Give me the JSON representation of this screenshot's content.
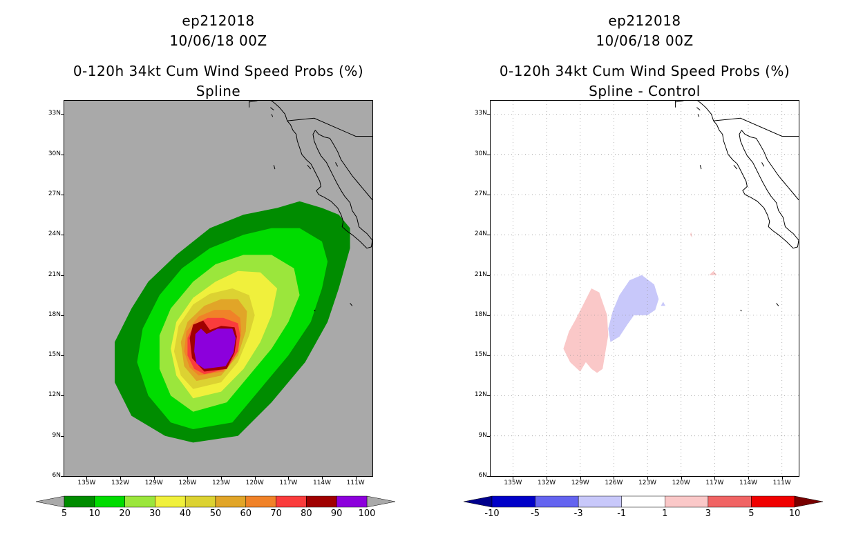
{
  "left": {
    "line1": "ep212018",
    "line2": "10/06/18 00Z",
    "line3": "0-120h 34kt Cum Wind Speed Probs (%)",
    "line4": "Spline",
    "background": "#a9a9a9",
    "colorbar": {
      "colors": [
        "#008c00",
        "#00dc00",
        "#9be63c",
        "#f0f03c",
        "#dcd232",
        "#e1a528",
        "#f08228",
        "#fa3c3c",
        "#a00000",
        "#8c00dc"
      ],
      "labels": [
        "5",
        "10",
        "20",
        "30",
        "40",
        "50",
        "60",
        "70",
        "80",
        "90",
        "100"
      ]
    }
  },
  "right": {
    "line1": "ep212018",
    "line2": "10/06/18 00Z",
    "line3": "0-120h 34kt Cum Wind Speed Probs (%)",
    "line4": "Spline - Control",
    "background": "#ffffff",
    "colorbar": {
      "colors": [
        "#0000c8",
        "#6464f0",
        "#c8c8fa",
        "#ffffff",
        "#fac8c8",
        "#f06464",
        "#f00000"
      ],
      "labels": [
        "-10",
        "-5",
        "-3",
        "-1",
        "1",
        "3",
        "5",
        "10"
      ],
      "low_end_color": "#00008c",
      "high_end_color": "#780000"
    }
  },
  "axes": {
    "lat_labels": [
      "33N",
      "30N",
      "27N",
      "24N",
      "21N",
      "18N",
      "15N",
      "12N",
      "9N",
      "6N"
    ],
    "lon_labels": [
      "135W",
      "132W",
      "129W",
      "126W",
      "123W",
      "120W",
      "117W",
      "114W",
      "111W"
    ]
  },
  "map_data": {
    "domain": {
      "lon_min": -137,
      "lon_max": -109.5,
      "lat_min": 6,
      "lat_max": 34
    },
    "prob_contours": [
      {
        "level": 5,
        "color": "#008c00",
        "points": [
          [
            -125.5,
            8.5
          ],
          [
            -121.5,
            9
          ],
          [
            -118.5,
            11.5
          ],
          [
            -115.5,
            14.5
          ],
          [
            -113.5,
            17.5
          ],
          [
            -112.5,
            20
          ],
          [
            -111.5,
            23
          ],
          [
            -111.5,
            24.5
          ],
          [
            -112.5,
            25.5
          ],
          [
            -114,
            26
          ],
          [
            -116,
            26.5
          ],
          [
            -118,
            26
          ],
          [
            -121,
            25.5
          ],
          [
            -124,
            24.5
          ],
          [
            -127,
            22.5
          ],
          [
            -129.5,
            20.5
          ],
          [
            -131,
            18.5
          ],
          [
            -132.5,
            16
          ],
          [
            -132.5,
            13
          ],
          [
            -131,
            10.5
          ],
          [
            -128,
            9
          ]
        ]
      },
      {
        "level": 10,
        "color": "#00dc00",
        "points": [
          [
            -125.5,
            9.5
          ],
          [
            -122,
            10
          ],
          [
            -119.5,
            12.5
          ],
          [
            -117,
            15
          ],
          [
            -115,
            17.5
          ],
          [
            -114,
            20
          ],
          [
            -113.5,
            22
          ],
          [
            -114,
            23.5
          ],
          [
            -116,
            24.5
          ],
          [
            -118.5,
            24.5
          ],
          [
            -121,
            24
          ],
          [
            -124,
            23
          ],
          [
            -126.5,
            21.5
          ],
          [
            -128.5,
            19.5
          ],
          [
            -130,
            17
          ],
          [
            -130.5,
            14.5
          ],
          [
            -129.5,
            12
          ],
          [
            -127.5,
            10
          ]
        ]
      },
      {
        "level": 20,
        "color": "#9be63c",
        "points": [
          [
            -125.5,
            10.8
          ],
          [
            -122.5,
            11.5
          ],
          [
            -120.5,
            13.5
          ],
          [
            -118.5,
            15.5
          ],
          [
            -117,
            17.5
          ],
          [
            -116,
            19.5
          ],
          [
            -116.5,
            21.5
          ],
          [
            -118.5,
            22.5
          ],
          [
            -121,
            22.5
          ],
          [
            -123.5,
            21.8
          ],
          [
            -125.5,
            20.5
          ],
          [
            -127.5,
            18.5
          ],
          [
            -128.5,
            16.5
          ],
          [
            -128.5,
            14
          ],
          [
            -127.5,
            12
          ]
        ]
      },
      {
        "level": 30,
        "color": "#f0f03c",
        "points": [
          [
            -125.5,
            11.8
          ],
          [
            -123,
            12.3
          ],
          [
            -121,
            14
          ],
          [
            -119.5,
            16
          ],
          [
            -118.5,
            18
          ],
          [
            -118,
            20
          ],
          [
            -119.5,
            21.2
          ],
          [
            -121.5,
            21.3
          ],
          [
            -123.5,
            20.5
          ],
          [
            -125.5,
            19.3
          ],
          [
            -127,
            17.5
          ],
          [
            -127.5,
            15.5
          ],
          [
            -127,
            13.5
          ]
        ]
      },
      {
        "level": 40,
        "color": "#dcd232",
        "points": [
          [
            -125.5,
            12.5
          ],
          [
            -123,
            13
          ],
          [
            -121.5,
            14.5
          ],
          [
            -120.5,
            16.5
          ],
          [
            -120,
            18
          ],
          [
            -120.5,
            19.5
          ],
          [
            -122,
            20
          ],
          [
            -124,
            19.6
          ],
          [
            -125.5,
            18.8
          ],
          [
            -126.8,
            17.2
          ],
          [
            -127.2,
            15.3
          ],
          [
            -126.6,
            13.5
          ]
        ]
      },
      {
        "level": 50,
        "color": "#e1a528",
        "points": [
          [
            -125.2,
            13.1
          ],
          [
            -123,
            13.5
          ],
          [
            -121.5,
            15
          ],
          [
            -120.8,
            16.8
          ],
          [
            -120.7,
            18.3
          ],
          [
            -121.5,
            19.2
          ],
          [
            -123,
            19.2
          ],
          [
            -124.5,
            18.7
          ],
          [
            -126,
            17.5
          ],
          [
            -126.6,
            16
          ],
          [
            -126.3,
            14.2
          ]
        ]
      },
      {
        "level": 60,
        "color": "#f08228",
        "points": [
          [
            -125,
            13.5
          ],
          [
            -122.8,
            13.8
          ],
          [
            -121.5,
            15.3
          ],
          [
            -121.2,
            16.8
          ],
          [
            -121.3,
            17.8
          ],
          [
            -122.2,
            18.4
          ],
          [
            -123.6,
            18.4
          ],
          [
            -125,
            17.9
          ],
          [
            -126.1,
            16.8
          ],
          [
            -126.3,
            15.3
          ],
          [
            -125.8,
            14.1
          ]
        ]
      },
      {
        "level": 70,
        "color": "#fa3c3c",
        "points": [
          [
            -124.5,
            13.6
          ],
          [
            -122.5,
            14
          ],
          [
            -121.5,
            15.3
          ],
          [
            -121.3,
            16.5
          ],
          [
            -121.5,
            17.4
          ],
          [
            -122.8,
            17.8
          ],
          [
            -124.2,
            17.8
          ],
          [
            -125.4,
            17.3
          ],
          [
            -126,
            16.3
          ],
          [
            -126,
            15
          ],
          [
            -125.4,
            14
          ]
        ]
      },
      {
        "level": 80,
        "color": "#a00000",
        "points": [
          [
            -124.5,
            13.8
          ],
          [
            -122.5,
            14
          ],
          [
            -121.8,
            15.2
          ],
          [
            -121.6,
            16.4
          ],
          [
            -121.8,
            17.1
          ],
          [
            -123,
            17.2
          ],
          [
            -124,
            16.9
          ],
          [
            -124.6,
            17.6
          ],
          [
            -125.5,
            17.3
          ],
          [
            -125.8,
            16.3
          ],
          [
            -125.6,
            14.8
          ]
        ]
      },
      {
        "level": 90,
        "color": "#8c00dc",
        "points": [
          [
            -124.5,
            14
          ],
          [
            -122.6,
            14.2
          ],
          [
            -121.9,
            15.2
          ],
          [
            -121.7,
            16.3
          ],
          [
            -122,
            17
          ],
          [
            -123.3,
            17
          ],
          [
            -124.3,
            16.6
          ],
          [
            -124.8,
            17
          ],
          [
            -125.3,
            16.6
          ],
          [
            -125.4,
            15.3
          ],
          [
            -125.2,
            14.4
          ]
        ]
      }
    ],
    "diff_contours": [
      {
        "level": 1,
        "color": "#fac8c8",
        "points": [
          [
            -127.5,
            13.7
          ],
          [
            -127,
            14
          ],
          [
            -126.8,
            15
          ],
          [
            -126.5,
            16.5
          ],
          [
            -126.6,
            18
          ],
          [
            -127.3,
            19.7
          ],
          [
            -128,
            20
          ],
          [
            -128.6,
            19
          ],
          [
            -129.4,
            17.7
          ],
          [
            -130,
            16.8
          ],
          [
            -130.5,
            15.5
          ],
          [
            -129.9,
            14.5
          ],
          [
            -129,
            13.8
          ],
          [
            -128.5,
            14.5
          ],
          [
            -128,
            14
          ]
        ]
      },
      {
        "level": -1,
        "color": "#c8c8fa",
        "points": [
          [
            -126.3,
            16
          ],
          [
            -125.5,
            16.4
          ],
          [
            -124.8,
            17.3
          ],
          [
            -124.2,
            18
          ],
          [
            -123,
            18
          ],
          [
            -122.3,
            18.4
          ],
          [
            -122,
            19.2
          ],
          [
            -122.4,
            20.3
          ],
          [
            -123.5,
            21
          ],
          [
            -124.6,
            20.6
          ],
          [
            -125.5,
            19.5
          ],
          [
            -126.1,
            18.3
          ],
          [
            -126.5,
            17
          ]
        ]
      },
      {
        "level": -1,
        "color": "#c8c8fa",
        "points": [
          [
            -121.8,
            18.7
          ],
          [
            -121.4,
            18.7
          ],
          [
            -121.6,
            19
          ]
        ]
      },
      {
        "level": 1,
        "color": "#fac8c8",
        "points": [
          [
            -117.5,
            21
          ],
          [
            -116.8,
            21
          ],
          [
            -117.1,
            21.3
          ]
        ]
      },
      {
        "level": 1,
        "color": "#fac8c8",
        "points": [
          [
            -119.2,
            24
          ],
          [
            -119,
            23.8
          ],
          [
            -119.1,
            24.2
          ]
        ]
      }
    ],
    "coastline": [
      [
        [
          -120.5,
          33.9
        ],
        [
          -119.8,
          34
        ],
        [
          -119.5,
          34.3
        ],
        [
          -118.5,
          34
        ],
        [
          -118.2,
          33.8
        ],
        [
          -117.8,
          33.5
        ],
        [
          -117.3,
          33
        ],
        [
          -117.1,
          32.5
        ],
        [
          -116.8,
          32.2
        ],
        [
          -116.6,
          31.8
        ],
        [
          -116.3,
          31.5
        ],
        [
          -116.2,
          31
        ],
        [
          -116,
          30.5
        ],
        [
          -115.8,
          30
        ],
        [
          -115.4,
          29.6
        ],
        [
          -115,
          29.3
        ],
        [
          -114.8,
          29
        ],
        [
          -114.5,
          28.5
        ],
        [
          -114.2,
          28
        ],
        [
          -114.1,
          27.6
        ],
        [
          -114.5,
          27.3
        ],
        [
          -114.3,
          27
        ],
        [
          -113.8,
          26.8
        ],
        [
          -113.2,
          26.5
        ],
        [
          -112.6,
          26
        ],
        [
          -112.3,
          25.5
        ],
        [
          -112.1,
          25
        ],
        [
          -112.2,
          24.6
        ],
        [
          -111.8,
          24.3
        ],
        [
          -111.3,
          24
        ],
        [
          -110.6,
          23.5
        ],
        [
          -110,
          23
        ],
        [
          -109.6,
          23.1
        ],
        [
          -109.5,
          23.6
        ],
        [
          -110,
          24.1
        ],
        [
          -110.3,
          24.3
        ],
        [
          -110.7,
          24.6
        ],
        [
          -110.9,
          25.3
        ],
        [
          -111.3,
          25.8
        ],
        [
          -111.5,
          26.4
        ],
        [
          -112,
          26.9
        ],
        [
          -112.3,
          27.3
        ],
        [
          -112.7,
          27.9
        ],
        [
          -113,
          28.4
        ],
        [
          -113.3,
          28.9
        ],
        [
          -113.6,
          29.4
        ],
        [
          -114.1,
          29.9
        ],
        [
          -114.4,
          30.4
        ],
        [
          -114.7,
          31
        ],
        [
          -114.8,
          31.5
        ],
        [
          -114.6,
          31.8
        ]
      ],
      [
        [
          -114.6,
          31.8
        ],
        [
          -114.3,
          31.5
        ],
        [
          -113.8,
          31.3
        ],
        [
          -113.3,
          31.2
        ],
        [
          -113,
          30.8
        ],
        [
          -112.6,
          30.2
        ],
        [
          -112.3,
          29.6
        ],
        [
          -111.8,
          29
        ],
        [
          -111.3,
          28.4
        ],
        [
          -110.8,
          27.9
        ],
        [
          -110.4,
          27.5
        ],
        [
          -109.9,
          27
        ],
        [
          -109.5,
          26.6
        ]
      ],
      [
        [
          -120.5,
          34
        ],
        [
          -120.5,
          33.5
        ]
      ],
      [
        [
          -118.6,
          33.5
        ],
        [
          -118.3,
          33.3
        ]
      ],
      [
        [
          -118.5,
          33
        ],
        [
          -118.4,
          32.8
        ]
      ],
      [
        [
          -115.3,
          29.2
        ],
        [
          -115,
          28.9
        ]
      ],
      [
        [
          -118.3,
          29.2
        ],
        [
          -118.2,
          28.9
        ]
      ],
      [
        [
          -112.8,
          29.4
        ],
        [
          -112.6,
          29.1
        ]
      ],
      [
        [
          -111.5,
          18.9
        ],
        [
          -111.3,
          18.7
        ]
      ],
      [
        [
          -114.7,
          18.4
        ],
        [
          -114.6,
          18.3
        ]
      ]
    ],
    "borders": [
      [
        [
          -117.1,
          32.5
        ],
        [
          -114.7,
          32.7
        ],
        [
          -111,
          31.35
        ],
        [
          -108.5,
          31.35
        ]
      ]
    ]
  }
}
